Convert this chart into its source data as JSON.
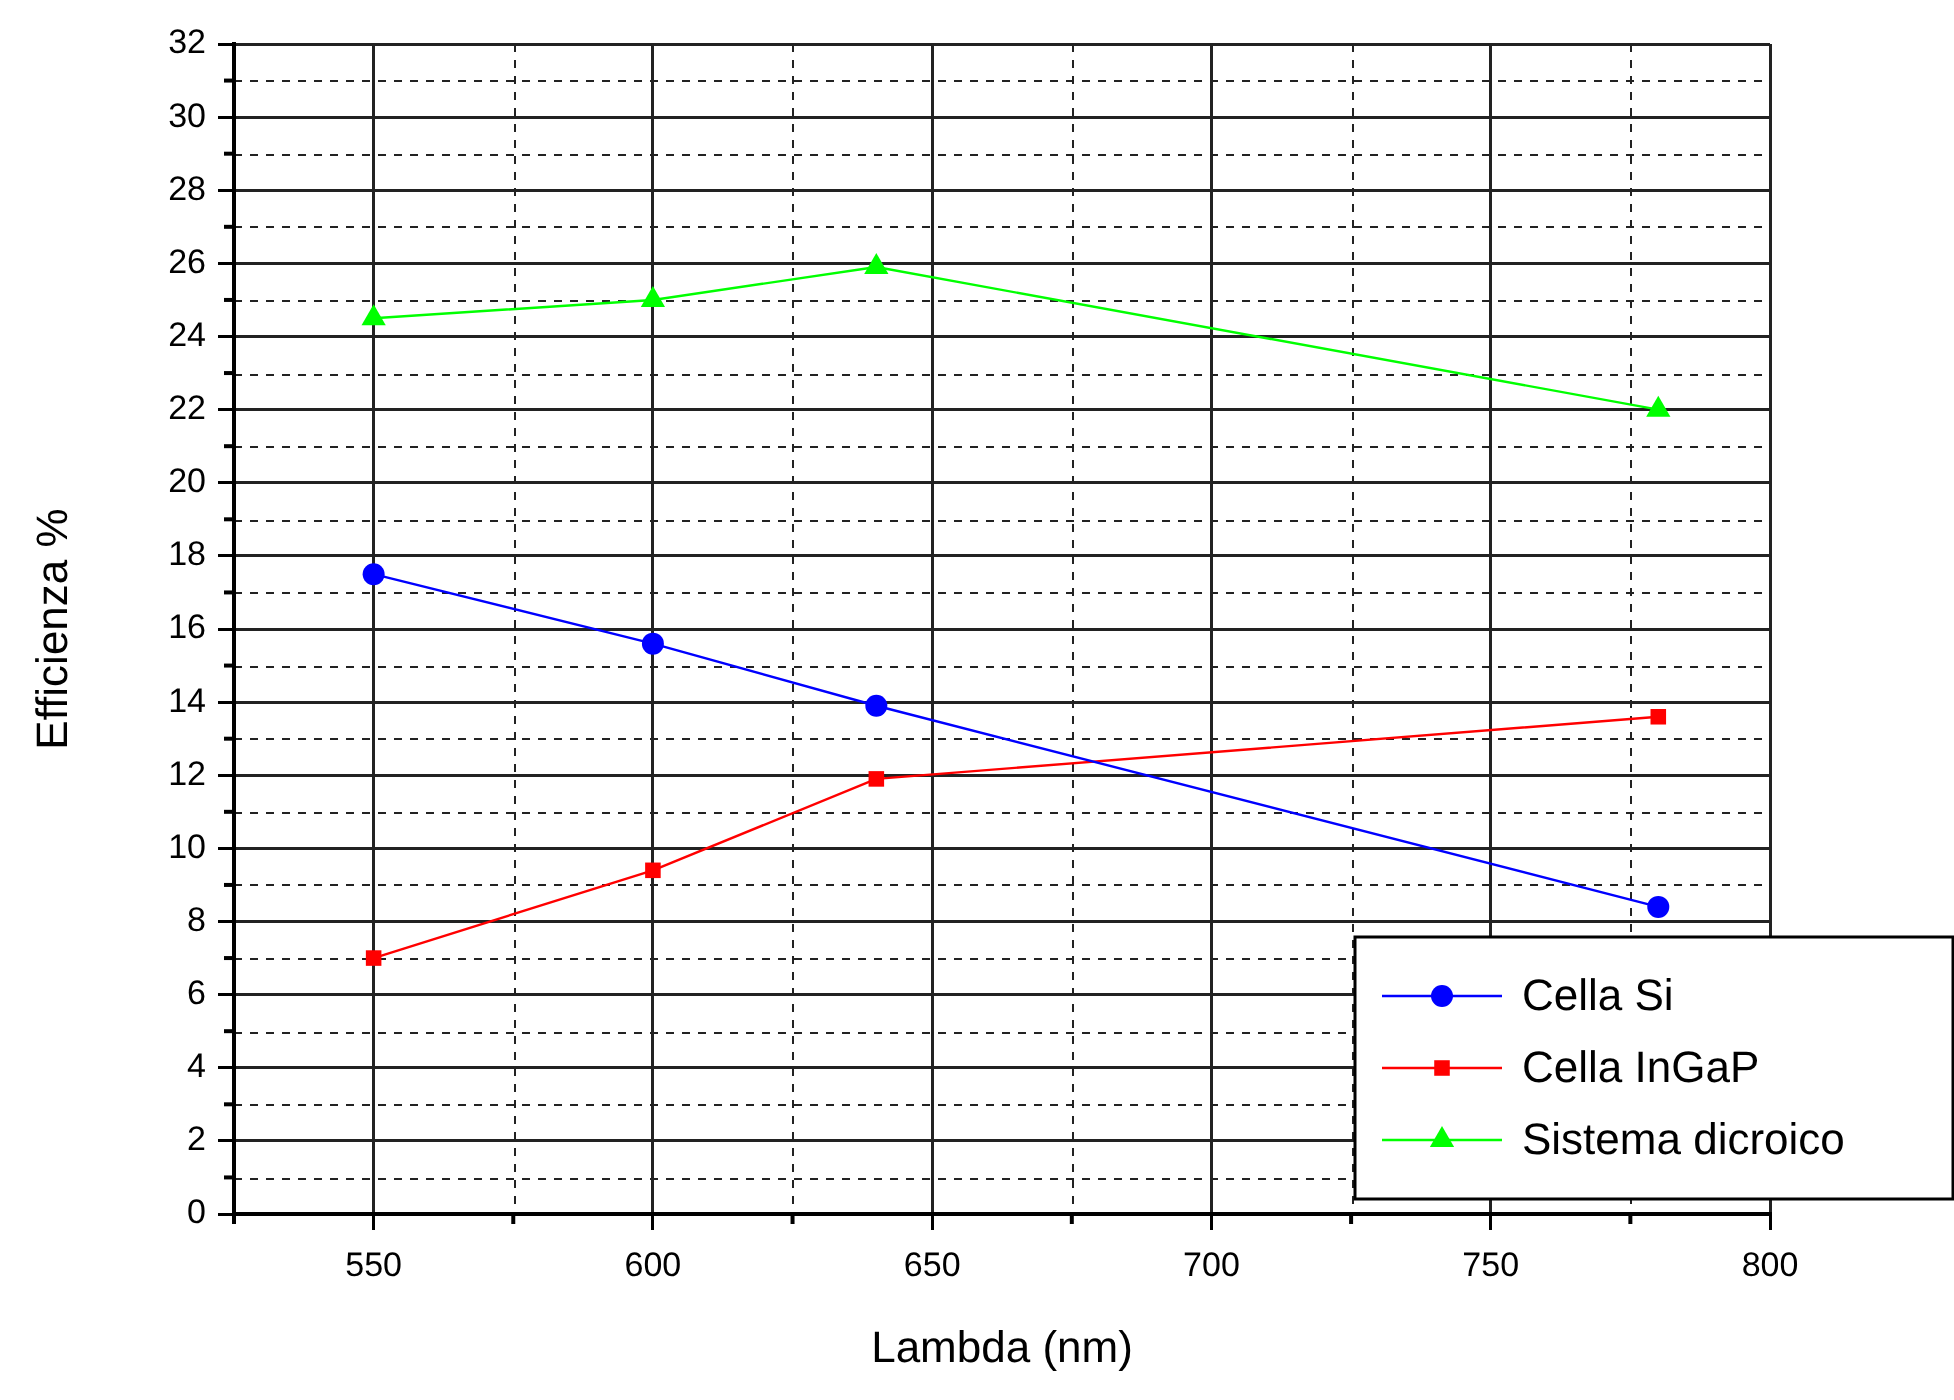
{
  "chart_data": {
    "type": "line",
    "xlabel": "Lambda (nm)",
    "ylabel": "Efficienza %",
    "x": [
      550,
      600,
      640,
      780
    ],
    "series": [
      {
        "name": "Cella Si",
        "color": "#0000ff",
        "marker": "circle",
        "values": [
          17.5,
          15.6,
          13.9,
          8.4
        ]
      },
      {
        "name": "Cella InGaP",
        "color": "#ff0000",
        "marker": "square",
        "values": [
          7.0,
          9.4,
          11.9,
          13.6
        ]
      },
      {
        "name": "Sistema dicroico",
        "color": "#00ff00",
        "marker": "triangle",
        "values": [
          24.5,
          25.0,
          25.9,
          22.0
        ]
      }
    ],
    "xlim": [
      525,
      800
    ],
    "xticks": [
      550,
      600,
      650,
      700,
      750,
      800
    ],
    "ylim": [
      0,
      32
    ],
    "yticks": [
      0,
      2,
      4,
      6,
      8,
      10,
      12,
      14,
      16,
      18,
      20,
      22,
      24,
      26,
      28,
      30,
      32
    ],
    "grid": true,
    "legend": "bottom right",
    "line_style": "solid"
  }
}
